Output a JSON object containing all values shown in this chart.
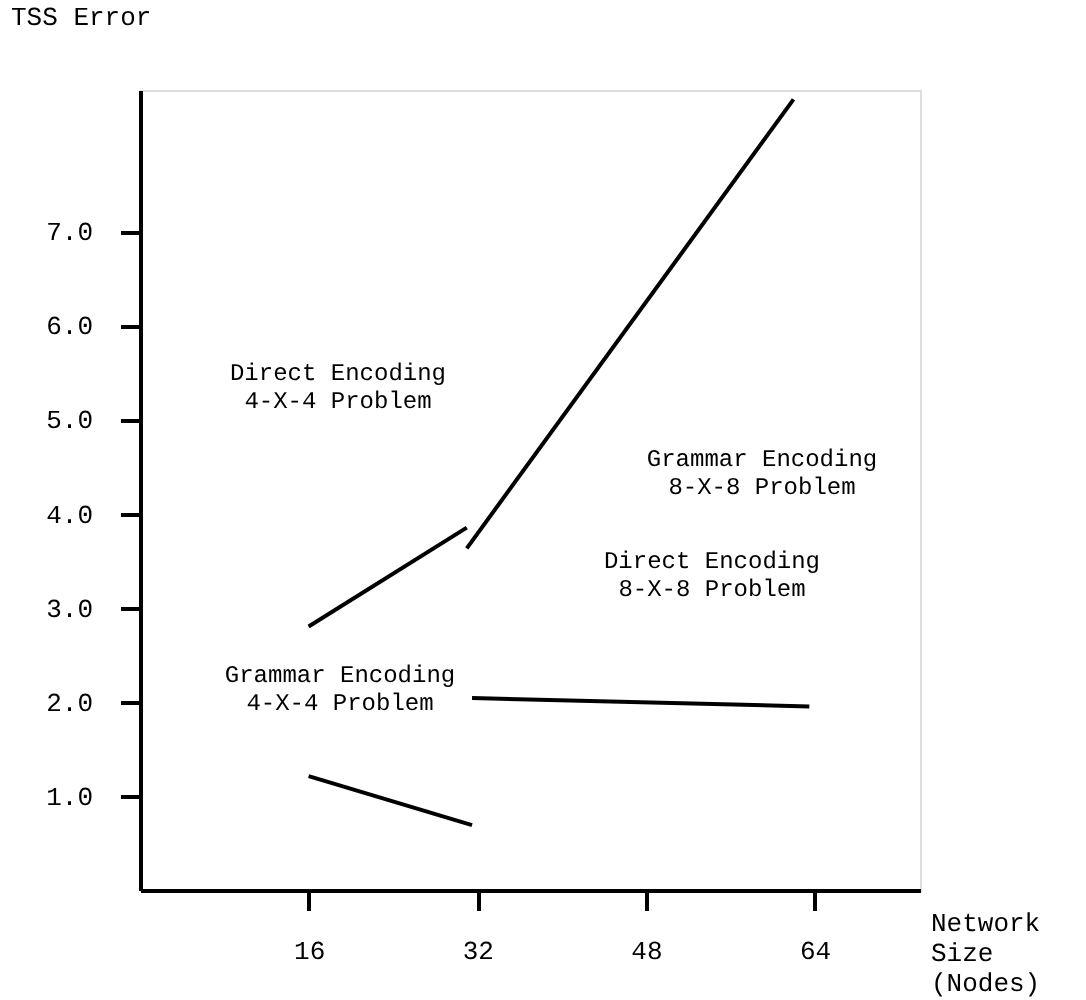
{
  "chart_data": {
    "type": "line",
    "xlabel": "Network\nSize\n(Nodes)",
    "ylabel": "TSS Error",
    "xlim": [
      0,
      74
    ],
    "ylim": [
      0,
      8.5
    ],
    "xticks": [
      16,
      32,
      48,
      64
    ],
    "yticks": [
      {
        "value": 1,
        "label": "1.0"
      },
      {
        "value": 2,
        "label": "2.0"
      },
      {
        "value": 3,
        "label": "3.0"
      },
      {
        "value": 4,
        "label": "4.0"
      },
      {
        "value": 5,
        "label": "5.0"
      },
      {
        "value": 6,
        "label": "6.0"
      },
      {
        "value": 7,
        "label": "7.0"
      }
    ],
    "grid": false,
    "marker": "none",
    "line_style": "solid",
    "series": [
      {
        "color": "#000000",
        "x": [
          16,
          31
        ],
        "values": [
          2.8,
          3.85
        ]
      },
      {
        "color": "#000000",
        "x": [
          31,
          62
        ],
        "values": [
          3.63,
          8.4
        ]
      },
      {
        "color": "#000000",
        "x": [
          16,
          31.5
        ],
        "values": [
          1.21,
          0.69
        ]
      },
      {
        "color": "#000000",
        "x": [
          31.5,
          63.5
        ],
        "values": [
          2.04,
          1.95
        ]
      }
    ],
    "annotations": [
      "Direct Encoding\n4-X-4 Problem",
      "Direct Encoding\n8-X-8 Problem",
      "Grammar Encoding\n8-X-8 Problem",
      "Grammar Encoding\n4-X-4 Problem"
    ]
  }
}
